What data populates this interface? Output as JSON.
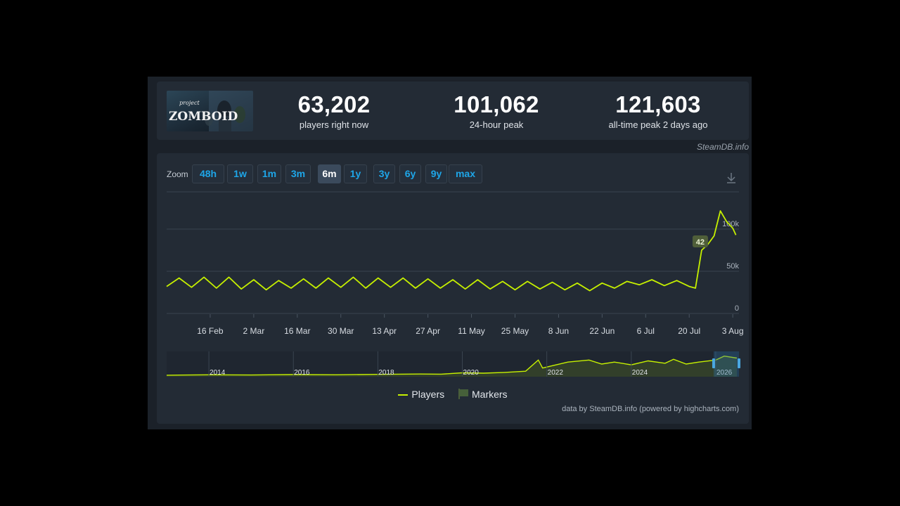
{
  "header": {
    "logo_text_top": "project",
    "logo_text_main": "ZOMBOID",
    "stats": [
      {
        "value": "63,202",
        "label": "players right now"
      },
      {
        "value": "101,062",
        "label": "24-hour peak"
      },
      {
        "value": "121,603",
        "label": "all-time peak 2 days ago"
      }
    ]
  },
  "credit_top": "SteamDB.info",
  "zoom": {
    "label": "Zoom",
    "buttons": [
      "48h",
      "1w",
      "1m",
      "3m",
      "6m",
      "1y",
      "3y",
      "6y",
      "9y",
      "max"
    ],
    "active": "6m"
  },
  "legend": {
    "players": "Players",
    "markers": "Markers"
  },
  "credit_bottom": "data by SteamDB.info (powered by highcharts.com)",
  "colors": {
    "series": "#c6f000",
    "panel": "#232b35",
    "accent": "#1ea6e8"
  },
  "chart_data": {
    "type": "line",
    "x_tick_labels": [
      "16 Feb",
      "2 Mar",
      "16 Mar",
      "30 Mar",
      "13 Apr",
      "27 Apr",
      "11 May",
      "25 May",
      "8 Jun",
      "22 Jun",
      "6 Jul",
      "20 Jul",
      "3 Aug"
    ],
    "y_tick_labels": [
      "0",
      "50k",
      "100k"
    ],
    "ylim": [
      0,
      140000
    ],
    "grid": true,
    "legend_position": "bottom",
    "marker_annotation": "42",
    "series": [
      {
        "name": "Players",
        "x": [
          "2025-02-02",
          "2025-02-06",
          "2025-02-10",
          "2025-02-14",
          "2025-02-18",
          "2025-02-22",
          "2025-02-26",
          "2025-03-02",
          "2025-03-06",
          "2025-03-10",
          "2025-03-14",
          "2025-03-18",
          "2025-03-22",
          "2025-03-26",
          "2025-03-30",
          "2025-04-03",
          "2025-04-07",
          "2025-04-11",
          "2025-04-15",
          "2025-04-19",
          "2025-04-23",
          "2025-04-27",
          "2025-05-01",
          "2025-05-05",
          "2025-05-09",
          "2025-05-13",
          "2025-05-17",
          "2025-05-21",
          "2025-05-25",
          "2025-05-29",
          "2025-06-02",
          "2025-06-06",
          "2025-06-10",
          "2025-06-14",
          "2025-06-18",
          "2025-06-22",
          "2025-06-26",
          "2025-06-30",
          "2025-07-04",
          "2025-07-08",
          "2025-07-12",
          "2025-07-16",
          "2025-07-20",
          "2025-07-22",
          "2025-07-24",
          "2025-07-26",
          "2025-07-28",
          "2025-07-30",
          "2025-08-01",
          "2025-08-03",
          "2025-08-04"
        ],
        "values": [
          32000,
          42000,
          31000,
          43000,
          30000,
          43000,
          29000,
          40000,
          28000,
          39000,
          30000,
          41000,
          30000,
          42000,
          31000,
          43000,
          30000,
          42000,
          31000,
          42000,
          30000,
          41000,
          30000,
          40000,
          29000,
          40000,
          29000,
          38000,
          28000,
          38000,
          29000,
          37000,
          28000,
          36000,
          27000,
          36000,
          30000,
          38000,
          34000,
          40000,
          33000,
          39000,
          32000,
          30000,
          75000,
          82000,
          92000,
          121603,
          109000,
          101062,
          93000
        ]
      }
    ],
    "navigator": {
      "x_tick_labels": [
        "2014",
        "2016",
        "2018",
        "2020",
        "2022",
        "2024",
        "2026"
      ],
      "x": [
        "2013",
        "2014",
        "2015",
        "2016",
        "2017",
        "2018",
        "2019",
        "2019.5",
        "2020",
        "2020.5",
        "2021",
        "2021.5",
        "2021.8",
        "2021.9",
        "2022.1",
        "2022.5",
        "2023",
        "2023.3",
        "2023.6",
        "2024",
        "2024.4",
        "2024.8",
        "2025",
        "2025.3",
        "2025.6",
        "2026",
        "2026.2",
        "2026.5"
      ],
      "values": [
        2000,
        3000,
        2500,
        3500,
        3000,
        4000,
        5000,
        4500,
        8000,
        7000,
        9000,
        12000,
        40000,
        20000,
        25000,
        35000,
        40000,
        30000,
        35000,
        28000,
        38000,
        32000,
        42000,
        30000,
        35000,
        40000,
        50000,
        45000
      ]
    }
  }
}
